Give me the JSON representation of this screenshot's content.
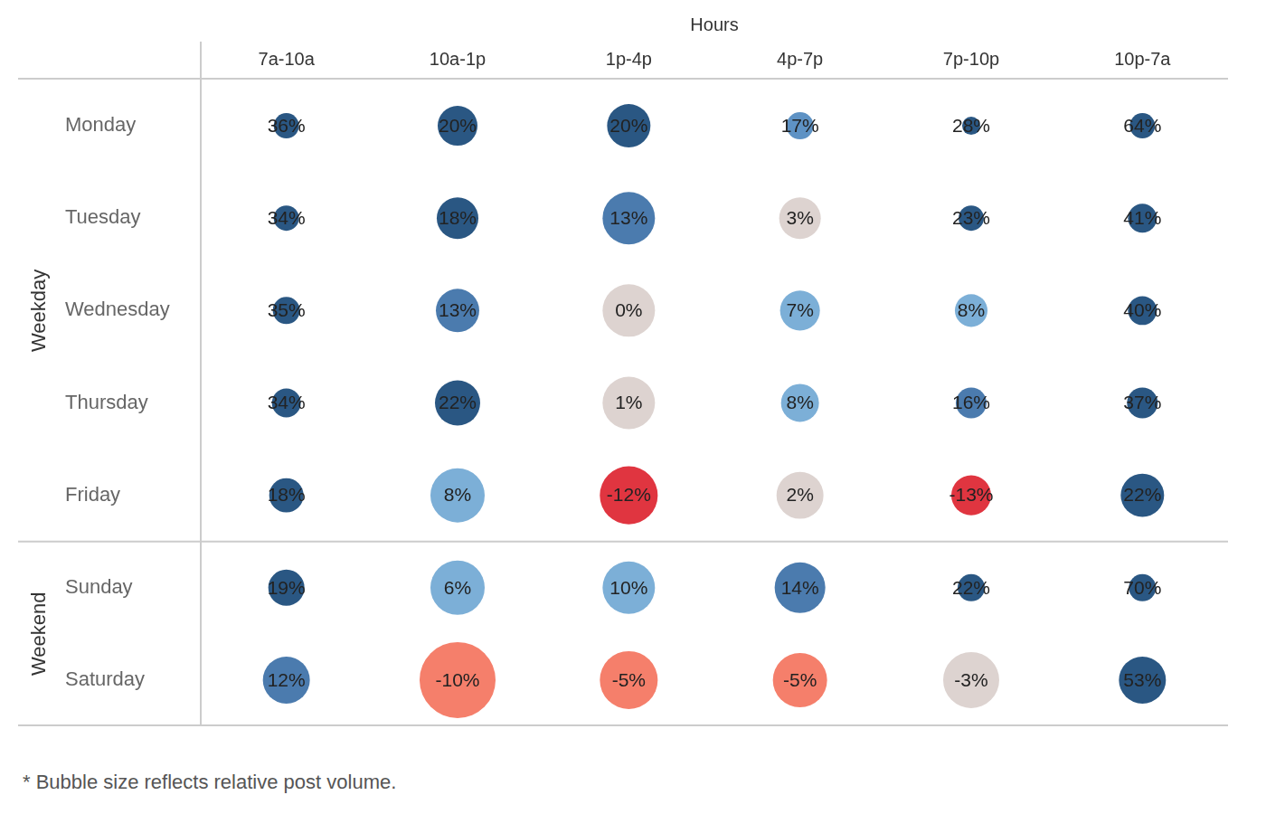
{
  "chart_data": {
    "type": "bubble",
    "x_label": "Hours",
    "categories": [
      "7a-10a",
      "10a-1p",
      "1p-4p",
      "4p-7p",
      "7p-10p",
      "10p-7a"
    ],
    "data_labels": true,
    "grid": false,
    "annotations": [
      "* Bubble size reflects relative post volume."
    ],
    "series": [
      {
        "name": "Monday",
        "group": "Weekday",
        "values": [
          36,
          20,
          20,
          17,
          28,
          64
        ],
        "value_labels": [
          "36%",
          "20%",
          "20%",
          "17%",
          "28%",
          "64%"
        ],
        "sizes": [
          7.8,
          19.4,
          23,
          9,
          4,
          7.8
        ],
        "colors": [
          "#2a5783",
          "#2a5783",
          "#2a5783",
          "#5e92c4",
          "#2a5783",
          "#2a5783"
        ]
      },
      {
        "name": "Tuesday",
        "group": "Weekday",
        "values": [
          34,
          18,
          13,
          3,
          23,
          41
        ],
        "value_labels": [
          "34%",
          "18%",
          "13%",
          "3%",
          "23%",
          "41%"
        ],
        "sizes": [
          7.8,
          21.2,
          33.6,
          21.2,
          7.8,
          10.2
        ],
        "colors": [
          "#2a5783",
          "#2a5783",
          "#4b7bae",
          "#ddd3d0",
          "#2a5783",
          "#2a5783"
        ]
      },
      {
        "name": "Wednesday",
        "group": "Weekday",
        "values": [
          35,
          13,
          0,
          7,
          8,
          40
        ],
        "value_labels": [
          "35%",
          "13%",
          "0%",
          "7%",
          "8%",
          "40%"
        ],
        "sizes": [
          9,
          23,
          33.6,
          19.4,
          13,
          10.2
        ],
        "colors": [
          "#2a5783",
          "#4b7bae",
          "#ddd3d0",
          "#7cafd7",
          "#7cafd7",
          "#2a5783"
        ]
      },
      {
        "name": "Thursday",
        "group": "Weekday",
        "values": [
          34,
          22,
          1,
          8,
          16,
          37
        ],
        "value_labels": [
          "34%",
          "22%",
          "1%",
          "8%",
          "16%",
          "37%"
        ],
        "sizes": [
          10.2,
          25,
          33.6,
          17.6,
          11.6,
          11.6
        ],
        "colors": [
          "#2a5783",
          "#2a5783",
          "#ddd3d0",
          "#7cafd7",
          "#4b7bae",
          "#2a5783"
        ]
      },
      {
        "name": "Friday",
        "group": "Weekday",
        "values": [
          18,
          8,
          -12,
          2,
          -13,
          22
        ],
        "value_labels": [
          "18%",
          "8%",
          "-12%",
          "2%",
          "-13%",
          "22%"
        ],
        "sizes": [
          14.4,
          36,
          41,
          27,
          19.4,
          23
        ],
        "colors": [
          "#2a5783",
          "#7cafd7",
          "#e03540",
          "#ddd3d0",
          "#e03540",
          "#2a5783"
        ]
      },
      {
        "name": "Sunday",
        "group": "Weekend",
        "values": [
          19,
          6,
          10,
          14,
          22,
          70
        ],
        "value_labels": [
          "19%",
          "6%",
          "10%",
          "14%",
          "22%",
          "70%"
        ],
        "sizes": [
          16,
          36,
          33.6,
          31.4,
          9,
          9
        ],
        "colors": [
          "#2a5783",
          "#7cafd7",
          "#7cafd7",
          "#4b7bae",
          "#2a5783",
          "#2a5783"
        ]
      },
      {
        "name": "Saturday",
        "group": "Weekend",
        "values": [
          12,
          -10,
          -5,
          -5,
          -3,
          53
        ],
        "value_labels": [
          "12%",
          "-10%",
          "-5%",
          "-5%",
          "-3%",
          "53%"
        ],
        "sizes": [
          27,
          70.6,
          41,
          36,
          38.4,
          27
        ],
        "colors": [
          "#4b7bae",
          "#f57f6b",
          "#f57f6b",
          "#f57f6b",
          "#ddd3d0",
          "#2a5783"
        ]
      }
    ]
  }
}
